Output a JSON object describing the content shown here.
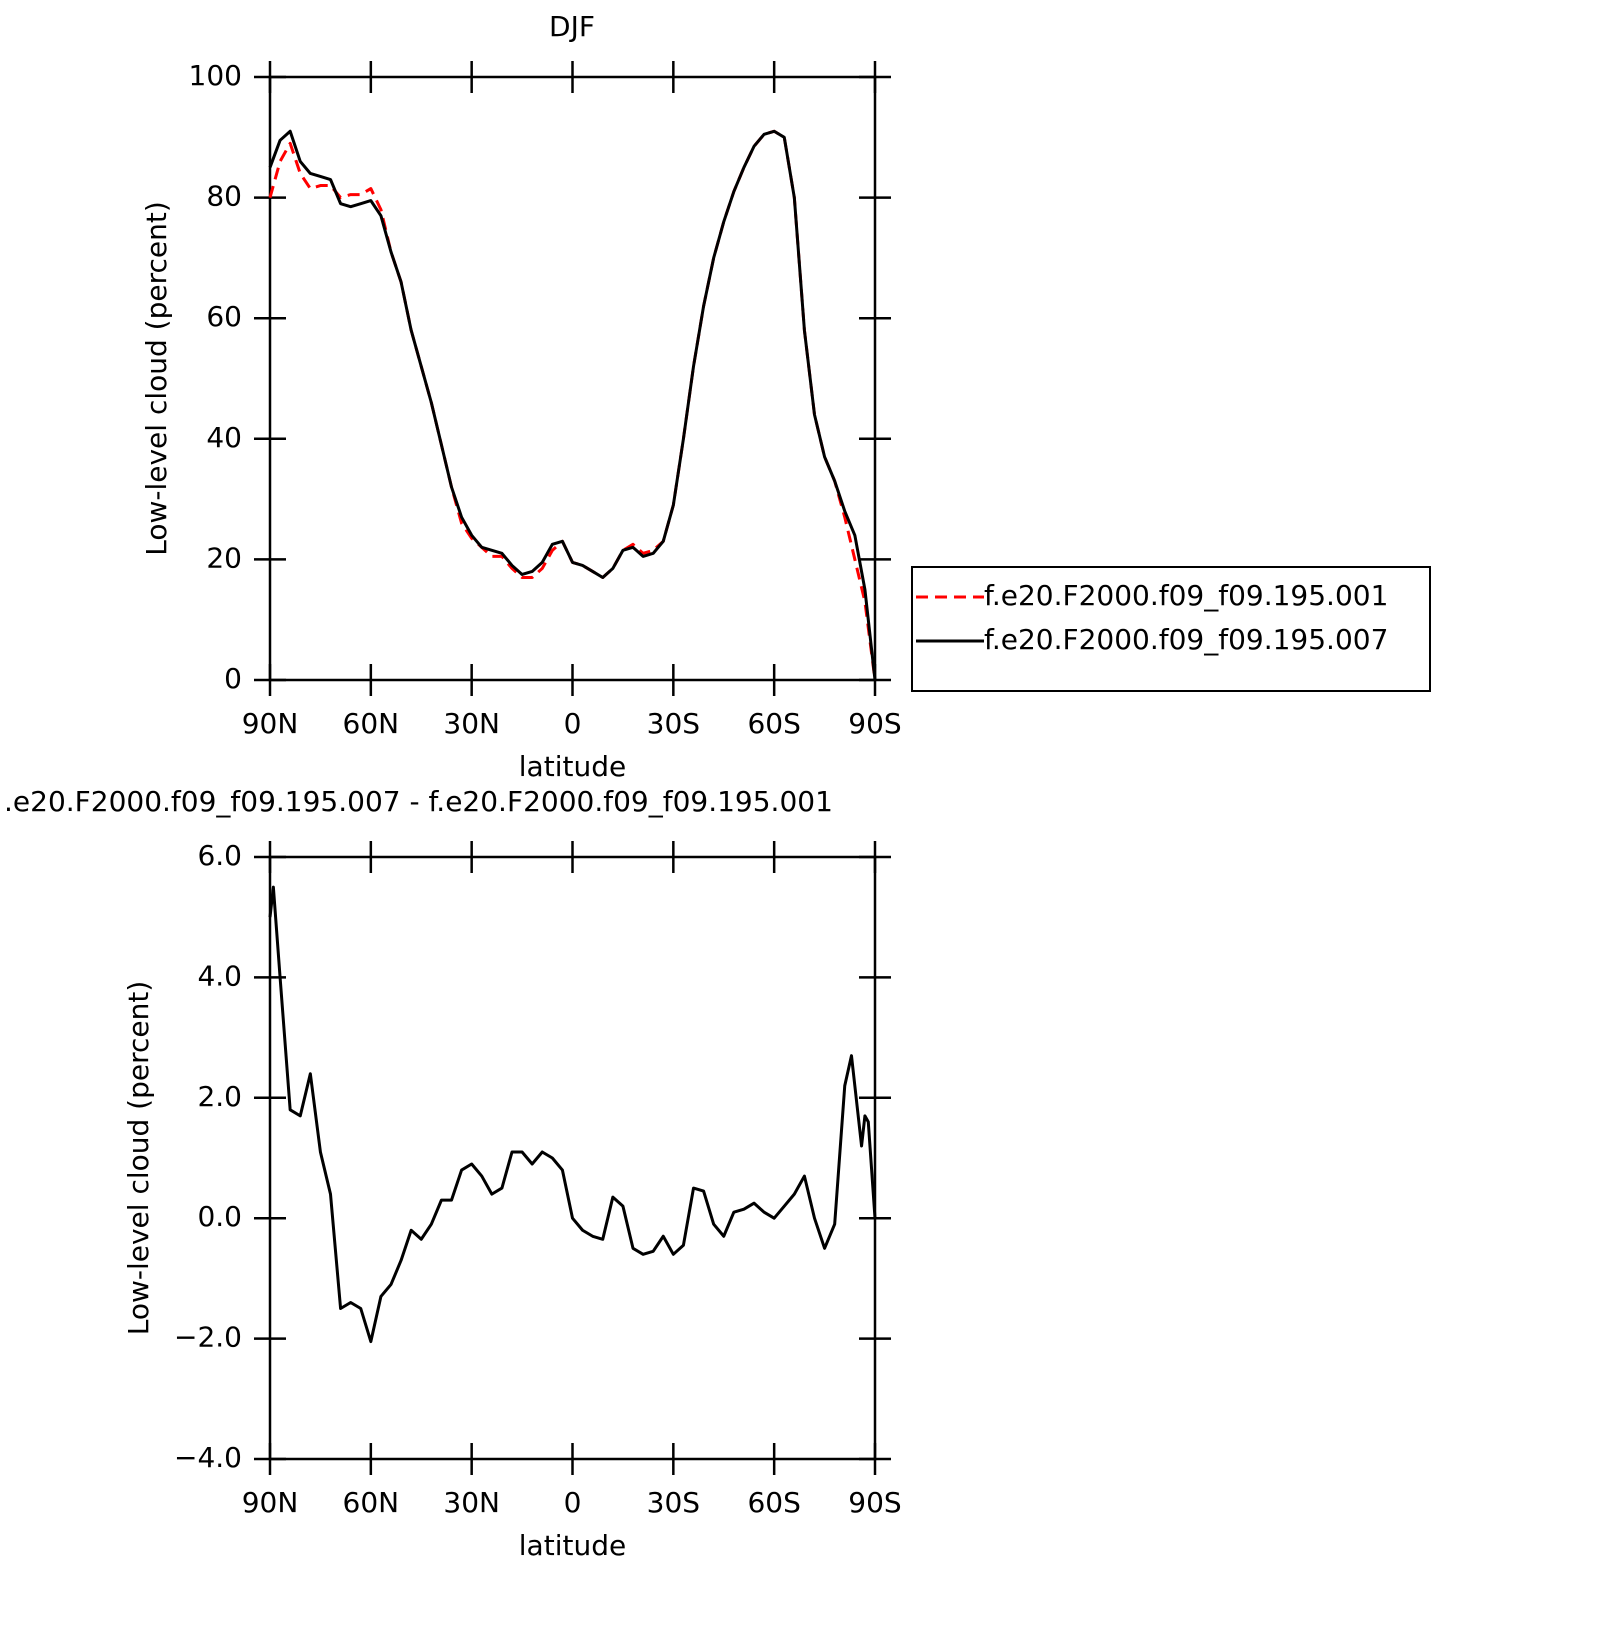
{
  "chart_data": [
    {
      "type": "line",
      "title": "DJF",
      "xlabel": "latitude",
      "ylabel": "Low-level cloud (percent)",
      "x": [
        90,
        87,
        84,
        81,
        78,
        75,
        72,
        69,
        66,
        63,
        60,
        57,
        54,
        51,
        48,
        45,
        42,
        39,
        36,
        33,
        30,
        27,
        24,
        21,
        18,
        15,
        12,
        9,
        6,
        3,
        0,
        -3,
        -6,
        -9,
        -12,
        -15,
        -18,
        -21,
        -24,
        -27,
        -30,
        -33,
        -36,
        -39,
        -42,
        -45,
        -48,
        -51,
        -54,
        -57,
        -60,
        -63,
        -66,
        -69,
        -72,
        -75,
        -78,
        -81,
        -84,
        -87,
        -90
      ],
      "series": [
        {
          "name": "f.e20.F2000.f09_f09.195.001",
          "color": "#ff0000",
          "dash": true,
          "values": [
            80,
            86,
            89,
            84,
            81.5,
            82,
            82,
            80,
            80.5,
            80.5,
            81.5,
            78,
            71,
            66,
            58,
            52,
            46,
            39,
            32,
            26,
            23.5,
            22,
            20.5,
            20.5,
            18.5,
            17,
            17,
            18.5,
            21.5,
            23,
            19.5,
            19,
            18,
            17,
            18.5,
            21.5,
            22.5,
            21,
            21.5,
            23,
            29,
            40,
            52,
            62,
            70,
            76,
            81,
            85,
            88.5,
            90.5,
            91,
            90,
            80,
            58,
            44,
            37,
            33,
            27,
            20,
            13,
            0
          ]
        },
        {
          "name": "f.e20.F2000.f09_f09.195.007",
          "color": "#000000",
          "dash": false,
          "values": [
            85,
            89.5,
            91,
            86,
            84,
            83.5,
            83,
            79,
            78.5,
            79,
            79.5,
            77,
            71,
            66,
            58,
            52,
            46,
            39,
            32,
            27,
            24,
            22,
            21.5,
            21,
            19,
            17.5,
            18,
            19.5,
            22.5,
            23,
            19.5,
            19,
            18,
            17,
            18.5,
            21.5,
            22,
            20.5,
            21,
            23,
            29,
            40,
            52,
            62,
            70,
            76,
            81,
            85,
            88.5,
            90.5,
            91,
            90,
            80,
            58,
            44,
            37,
            33,
            28,
            24,
            15,
            0
          ]
        }
      ],
      "xlim": [
        90,
        -90
      ],
      "xticks": [
        {
          "value": 90,
          "label": "90N"
        },
        {
          "value": 60,
          "label": "60N"
        },
        {
          "value": 30,
          "label": "30N"
        },
        0,
        {
          "value": -30,
          "label": "30S"
        },
        {
          "value": -60,
          "label": "60S"
        },
        {
          "value": -90,
          "label": "90S"
        }
      ],
      "ylim": [
        0,
        100
      ],
      "yticks": [
        0,
        20,
        40,
        60,
        80,
        100
      ],
      "legend": "right"
    },
    {
      "type": "line",
      "title": ".e20.F2000.f09_f09.195.007 - f.e20.F2000.f09_f09.195.001",
      "xlabel": "latitude",
      "ylabel": "Low-level cloud (percent)",
      "x": [
        90,
        89,
        87,
        84,
        81,
        78,
        75,
        72,
        69,
        66,
        63,
        60,
        57,
        54,
        51,
        48,
        45,
        42,
        39,
        36,
        33,
        30,
        27,
        24,
        21,
        18,
        15,
        12,
        9,
        6,
        3,
        0,
        -3,
        -6,
        -9,
        -12,
        -15,
        -18,
        -21,
        -24,
        -27,
        -30,
        -33,
        -36,
        -39,
        -42,
        -45,
        -48,
        -51,
        -54,
        -57,
        -60,
        -63,
        -66,
        -69,
        -72,
        -75,
        -78,
        -81,
        -83,
        -84,
        -86,
        -87,
        -88,
        -90
      ],
      "values": [
        5.0,
        5.5,
        4.0,
        1.8,
        1.7,
        2.4,
        1.1,
        0.4,
        -1.5,
        -1.4,
        -1.5,
        -2.05,
        -1.3,
        -1.1,
        -0.7,
        -0.2,
        -0.35,
        -0.1,
        0.3,
        0.3,
        0.8,
        0.9,
        0.7,
        0.4,
        0.5,
        1.1,
        1.1,
        0.9,
        1.1,
        1.0,
        0.8,
        0.0,
        -0.2,
        -0.3,
        -0.35,
        0.35,
        0.2,
        -0.5,
        -0.6,
        -0.55,
        -0.3,
        -0.6,
        -0.45,
        0.5,
        0.45,
        -0.1,
        -0.3,
        0.1,
        0.15,
        0.25,
        0.1,
        0.0,
        0.2,
        0.4,
        0.7,
        0.0,
        -0.5,
        -0.1,
        2.2,
        2.7,
        2.2,
        1.2,
        1.7,
        1.6,
        0.0
      ],
      "color": "#000000",
      "xlim": [
        90,
        -90
      ],
      "xticks": [
        {
          "value": 90,
          "label": "90N"
        },
        {
          "value": 60,
          "label": "60N"
        },
        {
          "value": 30,
          "label": "30N"
        },
        0,
        {
          "value": -30,
          "label": "30S"
        },
        {
          "value": -60,
          "label": "60S"
        },
        {
          "value": -90,
          "label": "90S"
        }
      ],
      "ylim": [
        -4,
        6
      ],
      "yticks": [
        {
          "value": -4,
          "label": "−4.0"
        },
        {
          "value": -2,
          "label": "−2.0"
        },
        {
          "value": 0,
          "label": "0.0"
        },
        {
          "value": 2,
          "label": "2.0"
        },
        {
          "value": 4,
          "label": "4.0"
        },
        {
          "value": 6,
          "label": "6.0"
        }
      ]
    }
  ]
}
